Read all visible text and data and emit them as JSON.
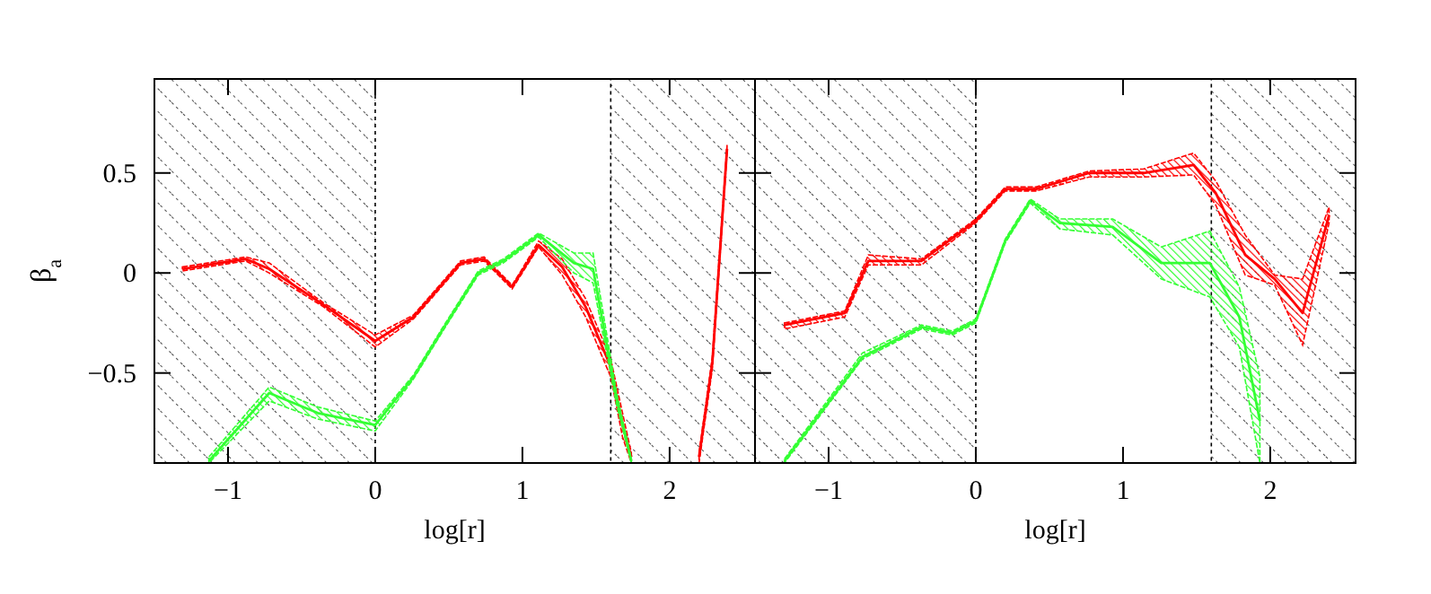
{
  "chart_data": [
    {
      "type": "line",
      "xlabel": "log[r]",
      "ylabel": "β$_{a}$",
      "xlim": [
        -1.5,
        2.58
      ],
      "xticks": [
        -1,
        0,
        1,
        2
      ],
      "ylim": [
        -0.95,
        0.97
      ],
      "yticks": [
        -0.5,
        0,
        0.5
      ],
      "bands": [
        {
          "axis": "x",
          "from": -1.5,
          "to": 0
        },
        {
          "axis": "x",
          "from": 1.6,
          "to": 2.58
        }
      ],
      "series": [
        {
          "color": "#ff0000",
          "x": [
            -1.31,
            -0.88,
            -0.72,
            -0.35,
            0,
            0.26,
            0.58,
            0.74,
            0.93,
            0.99,
            1.11,
            1.27,
            1.43,
            1.6,
            1.68,
            1.74,
            2.0,
            2.2,
            2.29,
            2.39
          ],
          "values": [
            0.02,
            0.07,
            0.02,
            -0.16,
            -0.34,
            -0.22,
            0.05,
            0.07,
            -0.07,
            0.0,
            0.14,
            0.03,
            -0.17,
            -0.47,
            -0.76,
            -0.92,
            null,
            -0.92,
            -0.45,
            0.62
          ],
          "lower": [
            0.01,
            0.06,
            0.0,
            -0.17,
            -0.37,
            -0.23,
            0.04,
            0.06,
            -0.08,
            -0.01,
            0.13,
            -0.01,
            -0.22,
            -0.52,
            -0.82,
            -0.95,
            null,
            -0.95,
            -0.48,
            0.6
          ],
          "upper": [
            0.03,
            0.08,
            0.05,
            -0.15,
            -0.31,
            -0.21,
            0.06,
            0.08,
            -0.06,
            0.01,
            0.16,
            0.07,
            -0.13,
            -0.43,
            -0.7,
            -0.9,
            null,
            -0.9,
            -0.42,
            0.64
          ]
        },
        {
          "color": "#33ff33",
          "x": [
            -1.13,
            -0.72,
            -0.39,
            0,
            0.26,
            0.46,
            0.7,
            0.87,
            1.11,
            1.35,
            1.48,
            1.64,
            1.74
          ],
          "values": [
            -0.94,
            -0.6,
            -0.7,
            -0.76,
            -0.52,
            -0.28,
            0.0,
            0.06,
            0.19,
            0.05,
            0.02,
            -0.63,
            -0.94
          ],
          "lower": [
            -0.95,
            -0.64,
            -0.73,
            -0.79,
            -0.53,
            -0.29,
            -0.01,
            0.05,
            0.18,
            0.0,
            -0.05,
            -0.66,
            -0.95
          ],
          "upper": [
            -0.92,
            -0.57,
            -0.67,
            -0.74,
            -0.51,
            -0.27,
            0.01,
            0.07,
            0.2,
            0.1,
            0.1,
            -0.6,
            -0.93
          ]
        }
      ]
    },
    {
      "type": "line",
      "xlabel": "log[r]",
      "xlim": [
        -1.5,
        2.58
      ],
      "xticks": [
        -1,
        0,
        1,
        2
      ],
      "ylim": [
        -0.95,
        0.97
      ],
      "yticks": [
        -0.5,
        0,
        0.5
      ],
      "tick_labels": "x",
      "bands": [
        {
          "axis": "x",
          "from": -1.5,
          "to": 0
        },
        {
          "axis": "x",
          "from": 1.6,
          "to": 2.58
        }
      ],
      "series": [
        {
          "color": "#ff0000",
          "x": [
            -1.3,
            -0.89,
            -0.73,
            -0.37,
            0,
            0.2,
            0.41,
            0.77,
            1.14,
            1.48,
            1.63,
            1.83,
            2.03,
            2.22,
            2.4
          ],
          "values": [
            -0.26,
            -0.2,
            0.06,
            0.06,
            0.26,
            0.42,
            0.42,
            0.5,
            0.5,
            0.54,
            0.4,
            0.09,
            -0.03,
            -0.2,
            0.29
          ],
          "lower": [
            -0.28,
            -0.22,
            0.04,
            0.04,
            0.25,
            0.41,
            0.41,
            0.48,
            0.48,
            0.49,
            0.34,
            -0.01,
            -0.06,
            -0.36,
            0.25
          ],
          "upper": [
            -0.25,
            -0.19,
            0.09,
            0.07,
            0.27,
            0.43,
            0.43,
            0.51,
            0.52,
            0.6,
            0.46,
            0.19,
            -0.01,
            -0.03,
            0.33
          ]
        },
        {
          "color": "#33ff33",
          "x": [
            -1.3,
            -0.77,
            -0.37,
            -0.16,
            0,
            0.2,
            0.37,
            0.57,
            0.93,
            1.26,
            1.59,
            1.79,
            1.93
          ],
          "values": [
            -0.94,
            -0.42,
            -0.27,
            -0.3,
            -0.24,
            0.16,
            0.36,
            0.25,
            0.23,
            0.05,
            0.05,
            -0.22,
            -0.74
          ],
          "lower": [
            -0.95,
            -0.43,
            -0.28,
            -0.31,
            -0.25,
            0.15,
            0.35,
            0.22,
            0.19,
            -0.03,
            -0.12,
            -0.37,
            -0.95
          ],
          "upper": [
            -0.93,
            -0.4,
            -0.26,
            -0.29,
            -0.23,
            0.17,
            0.37,
            0.27,
            0.27,
            0.13,
            0.21,
            -0.07,
            -0.52
          ]
        }
      ]
    }
  ]
}
